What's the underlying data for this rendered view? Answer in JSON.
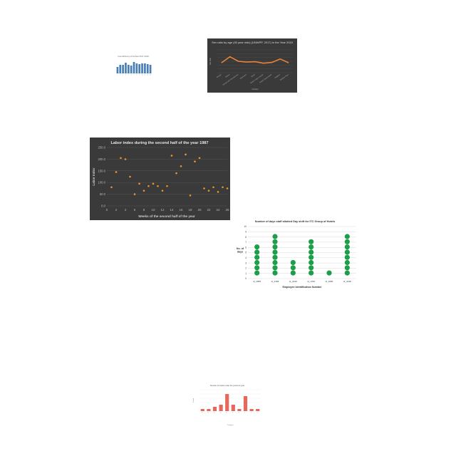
{
  "chart_data": [
    {
      "type": "bar",
      "title": "Fuel efficiency of the fleet 2017–2018",
      "xlabel": "",
      "ylabel": "",
      "categories": [
        "1",
        "2",
        "3",
        "4",
        "5",
        "6",
        "7",
        "8",
        "9",
        "10",
        "11",
        "12",
        "13"
      ],
      "values": [
        9,
        12,
        12,
        15,
        12,
        11,
        16,
        14,
        13,
        14,
        14,
        13,
        12
      ],
      "ylim": [
        0,
        20
      ],
      "color": "#4a7fb5",
      "grid": false
    },
    {
      "type": "line",
      "title": "Sex ratio by age (40 year olds) (UNWPP, 2017) in the Year 2015",
      "xlabel": "Country",
      "ylabel": "Sex ratio",
      "categories": [
        "Bhutan",
        "Bolivia",
        "Bosnia and Herzegovina",
        "Botswana",
        "Brazil",
        "British Virgin Islands",
        "Brunei Darussalam",
        "Bulgaria",
        "Burkina Faso"
      ],
      "values": [
        0.96,
        1.12,
        1.0,
        0.98,
        0.99,
        0.95,
        0.97,
        1.06,
        0.96
      ],
      "ylim": [
        0.7,
        1.3
      ],
      "color": "#e8823a",
      "background": "#3a3a3a",
      "grid": true
    },
    {
      "type": "scatter",
      "title": "Labor index during the second half of the year 1987",
      "xlabel": "Weeks of the second half of the year",
      "ylabel": "Labor Index",
      "x_ticks": [
        0,
        2,
        4,
        6,
        8,
        10,
        12,
        14,
        16,
        18,
        20,
        22,
        24,
        26
      ],
      "y_ticks": [
        "0.0",
        "50.0",
        "100.0",
        "150.0",
        "200.0",
        "250.0"
      ],
      "xlim": [
        0,
        26
      ],
      "ylim": [
        0,
        250
      ],
      "points": [
        {
          "x": 1,
          "y": 80
        },
        {
          "x": 2,
          "y": 145
        },
        {
          "x": 3,
          "y": 205
        },
        {
          "x": 4,
          "y": 200
        },
        {
          "x": 5,
          "y": 125
        },
        {
          "x": 6,
          "y": 50
        },
        {
          "x": 7,
          "y": 95
        },
        {
          "x": 8,
          "y": 65
        },
        {
          "x": 9,
          "y": 85
        },
        {
          "x": 10,
          "y": 95
        },
        {
          "x": 11,
          "y": 85
        },
        {
          "x": 12,
          "y": 65
        },
        {
          "x": 13,
          "y": 85
        },
        {
          "x": 14,
          "y": 215
        },
        {
          "x": 15,
          "y": 140
        },
        {
          "x": 16,
          "y": 170
        },
        {
          "x": 17,
          "y": 220
        },
        {
          "x": 18,
          "y": 45
        },
        {
          "x": 19,
          "y": 190
        },
        {
          "x": 20,
          "y": 205
        },
        {
          "x": 21,
          "y": 75
        },
        {
          "x": 22,
          "y": 65
        },
        {
          "x": 23,
          "y": 80
        },
        {
          "x": 24,
          "y": 60
        },
        {
          "x": 25,
          "y": 80
        },
        {
          "x": 26,
          "y": 75
        }
      ],
      "color": "#f0922c",
      "background": "#3a3a3a",
      "grid": true
    },
    {
      "type": "dot",
      "title": "Number of days staff allotted Day shift for ITC Group of Hotels",
      "xlabel": "Employee Identification Number",
      "ylabel": "No. of days",
      "categories": [
        "id_3055",
        "id_2169",
        "id_3130",
        "id_1700",
        "id_1000",
        "id_4148"
      ],
      "values": [
        6,
        8,
        3,
        7,
        1,
        8
      ],
      "y_ticks": [
        0,
        1,
        2,
        3,
        4,
        5,
        6,
        7,
        8,
        9,
        10
      ],
      "ylim": [
        0,
        10
      ],
      "color": "#1f9e4a",
      "grid": true
    },
    {
      "type": "bar",
      "title": "Number of fossils under the period of year",
      "xlabel": "Category",
      "ylabel": "Count",
      "categories": [
        "A",
        "B",
        "C",
        "D",
        "E",
        "F",
        "G",
        "H",
        "I",
        "J"
      ],
      "values": [
        1,
        1,
        2,
        3,
        8,
        3,
        1,
        7,
        1,
        1
      ],
      "ylim": [
        0,
        10
      ],
      "color": "#e8675a",
      "grid": true
    }
  ]
}
